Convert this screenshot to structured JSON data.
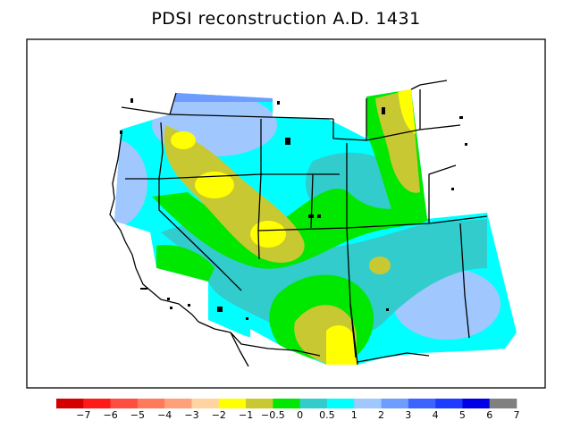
{
  "title": "PDSI reconstruction A.D. 1431",
  "legend": {
    "colors": [
      "#d40000",
      "#ff1a1a",
      "#ff4d40",
      "#ff7a5a",
      "#ffa07a",
      "#ffd4a0",
      "#ffff00",
      "#c8c832",
      "#00e800",
      "#33cccc",
      "#00ffff",
      "#a0c8ff",
      "#6e9cff",
      "#3c64ff",
      "#1e3cff",
      "#0000e6",
      "#808080"
    ],
    "labels": [
      "−7",
      "−6",
      "−5",
      "−4",
      "−3",
      "−2",
      "−1",
      "−0.5",
      "0",
      "0.5",
      "1",
      "2",
      "3",
      "4",
      "5",
      "6",
      "7"
    ]
  }
}
